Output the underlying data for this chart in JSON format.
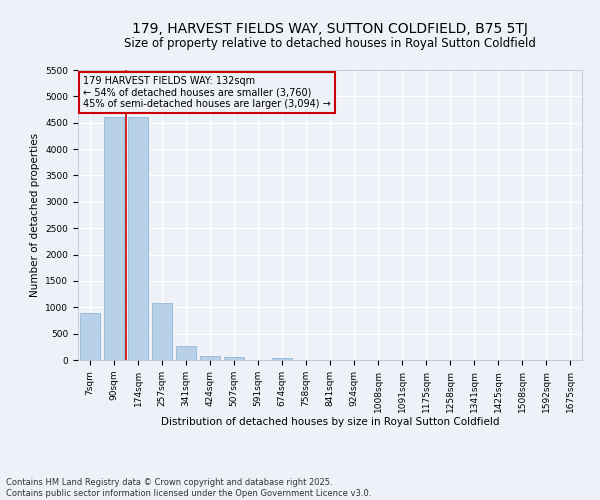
{
  "title": "179, HARVEST FIELDS WAY, SUTTON COLDFIELD, B75 5TJ",
  "subtitle": "Size of property relative to detached houses in Royal Sutton Coldfield",
  "xlabel": "Distribution of detached houses by size in Royal Sutton Coldfield",
  "ylabel": "Number of detached properties",
  "footer_line1": "Contains HM Land Registry data © Crown copyright and database right 2025.",
  "footer_line2": "Contains public sector information licensed under the Open Government Licence v3.0.",
  "annotation_line1": "179 HARVEST FIELDS WAY: 132sqm",
  "annotation_line2": "← 54% of detached houses are smaller (3,760)",
  "annotation_line3": "45% of semi-detached houses are larger (3,094) →",
  "bar_color": "#b8d0e8",
  "bar_edge_color": "#8ab0d0",
  "red_line_color": "#cc0000",
  "background_color": "#eef2f8",
  "grid_color": "#ffffff",
  "categories": [
    "7sqm",
    "90sqm",
    "174sqm",
    "257sqm",
    "341sqm",
    "424sqm",
    "507sqm",
    "591sqm",
    "674sqm",
    "758sqm",
    "841sqm",
    "924sqm",
    "1008sqm",
    "1091sqm",
    "1175sqm",
    "1258sqm",
    "1341sqm",
    "1425sqm",
    "1508sqm",
    "1592sqm",
    "1675sqm"
  ],
  "values": [
    890,
    4600,
    4600,
    1075,
    265,
    75,
    65,
    0,
    30,
    0,
    0,
    0,
    0,
    0,
    0,
    0,
    0,
    0,
    0,
    0,
    0
  ],
  "ylim": [
    0,
    5500
  ],
  "yticks": [
    0,
    500,
    1000,
    1500,
    2000,
    2500,
    3000,
    3500,
    4000,
    4500,
    5000,
    5500
  ],
  "red_line_bar_index": 1.5,
  "title_fontsize": 10,
  "subtitle_fontsize": 8.5,
  "axis_label_fontsize": 7.5,
  "tick_fontsize": 6.5,
  "footer_fontsize": 6,
  "annotation_fontsize": 7
}
